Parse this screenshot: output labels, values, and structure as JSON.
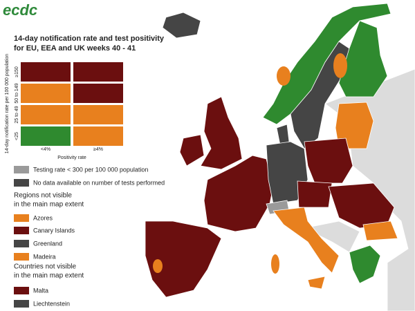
{
  "header": {
    "logo": "ecdc",
    "title": [
      "14-day notification rate and test positivity",
      "for EU, EEA and UK weeks 40 - 41"
    ]
  },
  "matrix": {
    "y_label": "14-day notification rate per 100 000 population",
    "rows": [
      "≥150",
      "50 to 149",
      "25 to 49",
      "<25"
    ],
    "columns": [
      "<4%",
      "≥4%"
    ],
    "x_label": "Positivity rate"
  },
  "legend": {
    "items": [
      "Testing rate < 300 per 100 000 population",
      "No data available on number of tests performed"
    ],
    "regions": {
      "title": [
        "Regions not visible",
        "in the main map extent"
      ],
      "items": [
        "Azores",
        "Canary Islands",
        "Greenland",
        "Madeira"
      ]
    },
    "countries": {
      "title": [
        "Countries not visible",
        "in the main map extent"
      ],
      "items": [
        "Malta",
        "Liechtenstein"
      ]
    }
  }
}
